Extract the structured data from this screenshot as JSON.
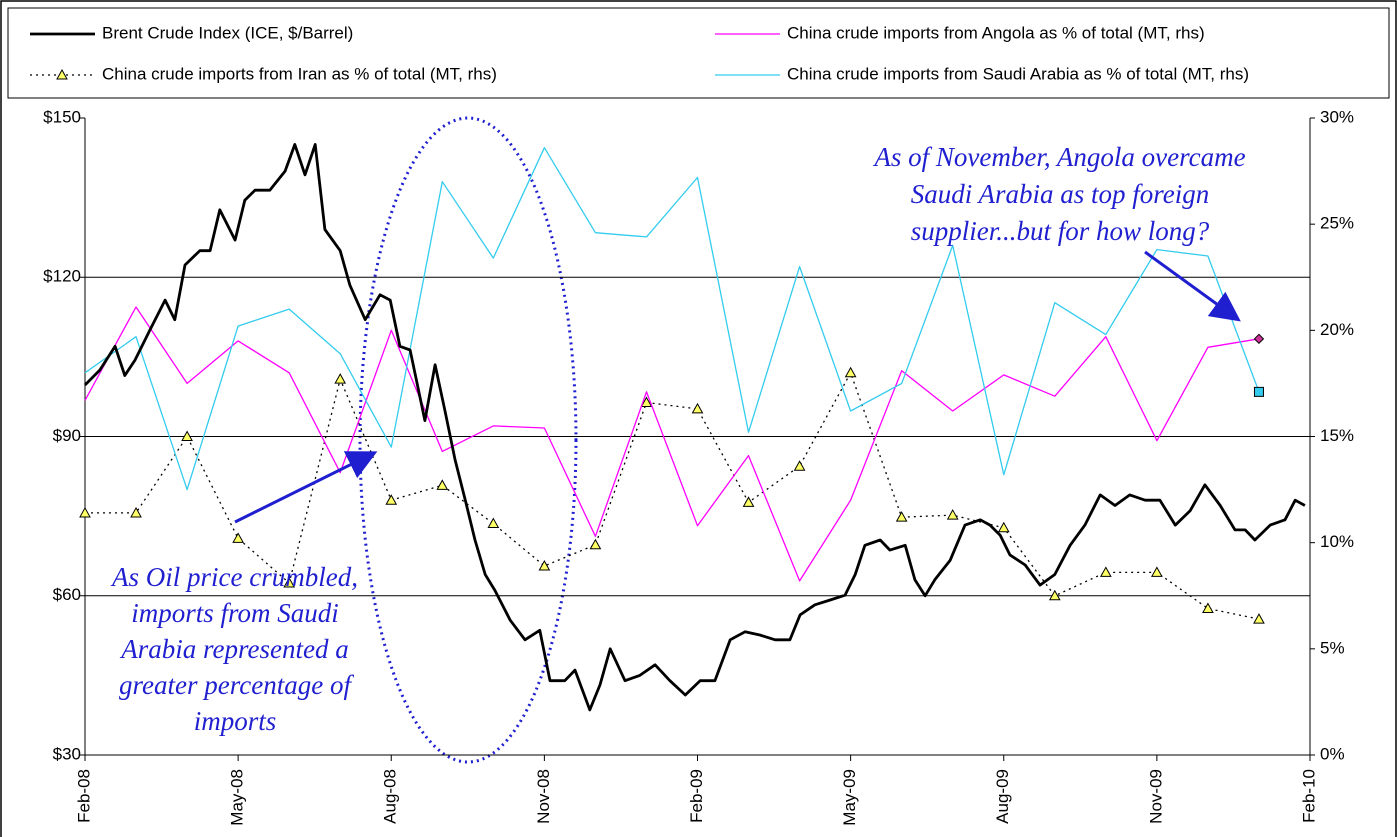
{
  "chart_data": {
    "type": "line",
    "xlim": [
      0,
      24
    ],
    "xticks": [
      {
        "value": 0,
        "label": "Feb-08"
      },
      {
        "value": 3,
        "label": "May-08"
      },
      {
        "value": 6,
        "label": "Aug-08"
      },
      {
        "value": 9,
        "label": "Nov-08"
      },
      {
        "value": 12,
        "label": "Feb-09"
      },
      {
        "value": 15,
        "label": "May-09"
      },
      {
        "value": 18,
        "label": "Aug-09"
      },
      {
        "value": 21,
        "label": "Nov-09"
      },
      {
        "value": 24,
        "label": "Feb-10"
      }
    ],
    "ylim": [
      30,
      150
    ],
    "yticks": [
      {
        "value": 30,
        "label": "$30"
      },
      {
        "value": 60,
        "label": "$60"
      },
      {
        "value": 90,
        "label": "$90"
      },
      {
        "value": 120,
        "label": "$120"
      },
      {
        "value": 150,
        "label": "$150"
      }
    ],
    "y2lim": [
      0,
      30
    ],
    "y2ticks": [
      {
        "value": 0,
        "label": "0%"
      },
      {
        "value": 5,
        "label": "5%"
      },
      {
        "value": 10,
        "label": "10%"
      },
      {
        "value": 15,
        "label": "15%"
      },
      {
        "value": 20,
        "label": "20%"
      },
      {
        "value": 25,
        "label": "25%"
      },
      {
        "value": 30,
        "label": "30%"
      }
    ],
    "grid": true,
    "x": [
      0,
      1,
      2,
      3,
      4,
      5,
      6,
      7,
      8,
      9,
      10,
      11,
      12,
      13,
      14,
      15,
      16,
      17,
      18,
      19,
      20,
      21,
      22,
      23
    ],
    "series": [
      {
        "name": "Brent Crude Index (ICE, $/Barrel)",
        "color": "#000000",
        "x": [
          0,
          0.29,
          0.59,
          0.78,
          0.98,
          1.27,
          1.57,
          1.76,
          1.96,
          2.25,
          2.45,
          2.64,
          2.94,
          3.13,
          3.33,
          3.62,
          3.92,
          4.11,
          4.31,
          4.51,
          4.7,
          5.0,
          5.19,
          5.49,
          5.78,
          5.98,
          6.17,
          6.37,
          6.66,
          6.86,
          7.05,
          7.25,
          7.45,
          7.64,
          7.84,
          8.03,
          8.33,
          8.62,
          8.91,
          9.11,
          9.4,
          9.6,
          9.89,
          10.09,
          10.29,
          10.58,
          10.87,
          11.17,
          11.46,
          11.76,
          12.05,
          12.34,
          12.64,
          12.93,
          13.22,
          13.52,
          13.81,
          14.01,
          14.3,
          14.6,
          14.89,
          15.09,
          15.28,
          15.58,
          15.77,
          16.07,
          16.26,
          16.46,
          16.65,
          16.95,
          17.24,
          17.54,
          17.73,
          17.93,
          18.12,
          18.42,
          18.71,
          19.0,
          19.3,
          19.59,
          19.89,
          20.18,
          20.47,
          20.77,
          21.06,
          21.36,
          21.65,
          21.94,
          22.24,
          22.53,
          22.73,
          22.92,
          23.22,
          23.51,
          23.71,
          23.9
        ],
        "values": [
          99.7,
          102.5,
          107,
          101.5,
          104.4,
          110,
          115.7,
          112,
          122.3,
          125,
          125,
          132.7,
          127,
          134.5,
          136.4,
          136.4,
          140,
          145,
          139.3,
          145,
          129,
          125,
          118.5,
          112,
          116.7,
          115.7,
          107,
          106.3,
          93,
          103.5,
          95,
          85.6,
          78,
          70.5,
          64,
          61,
          55.4,
          51.7,
          53.5,
          44,
          44,
          46,
          38.5,
          43.2,
          50,
          44,
          45,
          47,
          44,
          41.3,
          44,
          44,
          51.7,
          53.2,
          52.6,
          51.7,
          51.7,
          56.4,
          58.3,
          59.2,
          60.1,
          64,
          69.5,
          70.5,
          68.6,
          69.5,
          63,
          60,
          63,
          66.7,
          73.3,
          74.3,
          73.3,
          71.4,
          67.7,
          65.8,
          62,
          64,
          69.5,
          73.3,
          79,
          77,
          79,
          78,
          78,
          73.3,
          76,
          80.9,
          77,
          72.4,
          72.4,
          70.5,
          73.3,
          74.3,
          78,
          77
        ]
      },
      {
        "name": "China crude imports from Iran as % of total (MT, rhs)",
        "color": "#000000",
        "axis": "y2",
        "dash": true,
        "marker": "triangle",
        "marker_color": "#ffff66",
        "values": [
          11.4,
          11.4,
          15.0,
          10.2,
          8.1,
          17.7,
          12.0,
          12.7,
          10.9,
          8.9,
          9.9,
          16.6,
          16.3,
          11.9,
          13.6,
          18.0,
          11.2,
          11.3,
          10.7,
          7.5,
          8.6,
          8.6,
          6.9,
          6.4
        ]
      },
      {
        "name": "China crude imports from Angola as % of total (MT, rhs)",
        "color": "#ff00ff",
        "axis": "y2",
        "end_marker": "diamond",
        "marker_color": "#cc3399",
        "values": [
          16.7,
          21.1,
          17.5,
          19.5,
          18.0,
          13.3,
          20.0,
          14.3,
          15.5,
          15.4,
          10.3,
          17.1,
          10.8,
          14.1,
          8.2,
          12.0,
          18.1,
          16.2,
          17.9,
          16.9,
          19.7,
          14.8,
          19.2,
          19.6
        ]
      },
      {
        "name": "China crude imports from Saudi Arabia as % of total (MT, rhs)",
        "color": "#33ccee",
        "axis": "y2",
        "end_marker": "square",
        "marker_color": "#33ccee",
        "values": [
          18.0,
          19.7,
          12.5,
          20.2,
          21.0,
          18.9,
          14.5,
          27.0,
          23.4,
          28.6,
          24.6,
          24.4,
          27.2,
          15.2,
          23.0,
          16.2,
          17.5,
          24.0,
          13.2,
          21.3,
          19.8,
          23.8,
          23.5,
          17.1
        ]
      }
    ],
    "annotations": [
      [
        "As of November, Angola overcame",
        "Saudi Arabia as top foreign",
        "supplier...but for how long?"
      ],
      [
        "As Oil price crumbled,",
        "imports from Saudi",
        "Arabia represented a",
        "greater percentage of",
        "imports"
      ]
    ]
  }
}
